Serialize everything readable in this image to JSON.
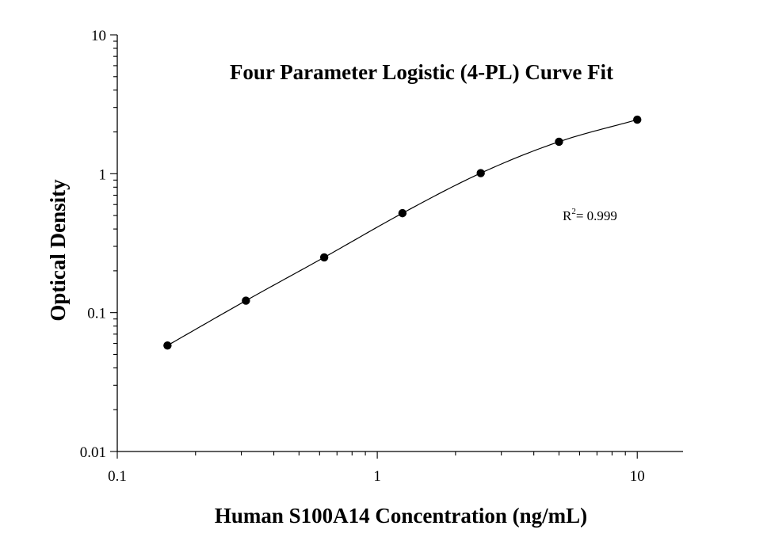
{
  "chart_data": {
    "type": "scatter",
    "title": "Four Parameter Logistic (4-PL) Curve Fit",
    "xlabel": "Human S100A14 Concentration (ng/mL)",
    "ylabel": "Optical Density",
    "x_scale": "log",
    "y_scale": "log",
    "xlim": [
      0.1,
      15
    ],
    "ylim": [
      0.01,
      10
    ],
    "x_ticks": [
      "0.1",
      "1",
      "10"
    ],
    "y_ticks": [
      "0.01",
      "0.1",
      "1",
      "10"
    ],
    "grid": false,
    "legend": "none",
    "series": [
      {
        "x": [
          0.156,
          0.3125,
          0.625,
          1.25,
          2.5,
          5,
          10
        ],
        "y": [
          0.058,
          0.122,
          0.25,
          0.52,
          1.01,
          1.7,
          2.45
        ]
      }
    ],
    "fit": {
      "type": "4-PL",
      "r_squared_label": "R",
      "r_squared_sup": "2",
      "r_squared_value": "= 0.999"
    },
    "colors": {
      "points": "#000000",
      "curve": "#000000",
      "axes": "#000000"
    }
  }
}
